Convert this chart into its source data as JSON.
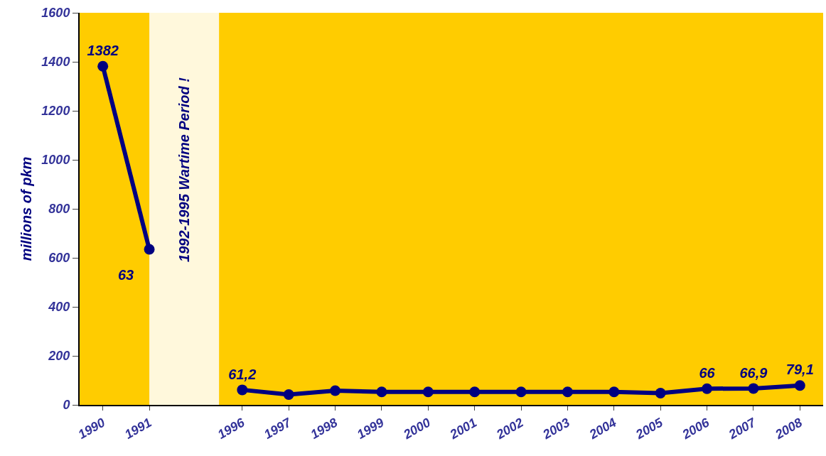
{
  "chart_data": {
    "type": "line",
    "ylabel": "millions of pkm",
    "categories": [
      "1990",
      "1991",
      null,
      "1996",
      "1997",
      "1998",
      "1999",
      "2000",
      "2001",
      "2002",
      "2003",
      "2004",
      "2005",
      "2006",
      "2007",
      "2008"
    ],
    "series": [
      {
        "color": "#000080",
        "values": [
          1382,
          635,
          null,
          61.2,
          42,
          58,
          53,
          53,
          53,
          53,
          53,
          53,
          48,
          66,
          66.9,
          79.1
        ],
        "value_labels": [
          "1382",
          null,
          null,
          "61,2",
          null,
          null,
          null,
          null,
          null,
          null,
          null,
          null,
          null,
          "66",
          "66,9",
          "79,1"
        ]
      }
    ],
    "ylim": [
      0,
      1600
    ],
    "yticks": [
      0,
      200,
      400,
      600,
      800,
      1000,
      1200,
      1400,
      1600
    ],
    "bands": [
      {
        "axis": "x",
        "from": "1991",
        "to": "1996",
        "label": "1992-1995 Wartime Period !",
        "color": "#fff8dc"
      }
    ],
    "annotations": [
      "63"
    ],
    "grid": false,
    "legend": false,
    "marker": "circle",
    "line_style": "solid"
  }
}
